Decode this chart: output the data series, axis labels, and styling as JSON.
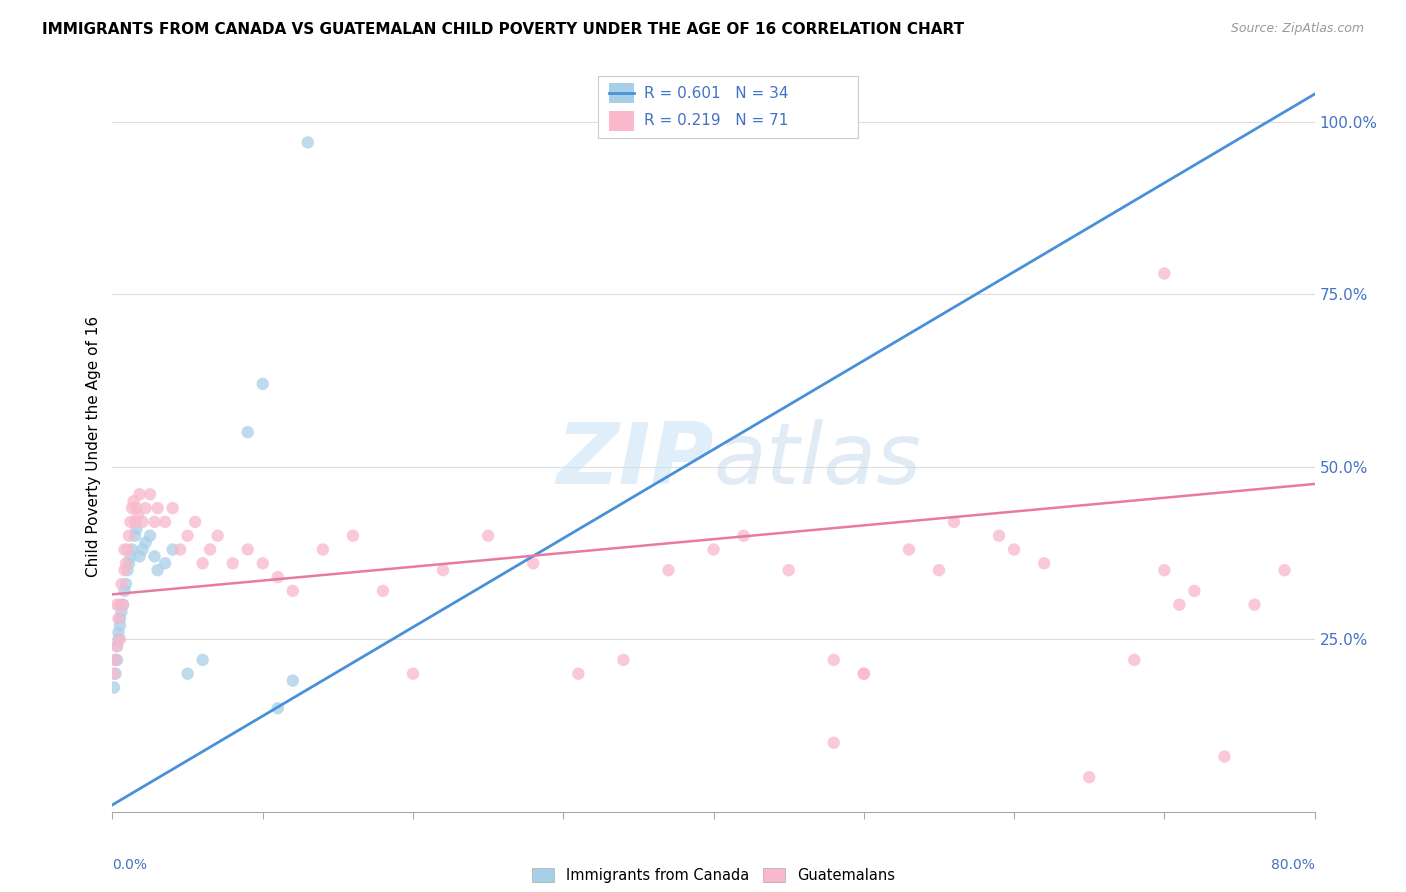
{
  "title": "IMMIGRANTS FROM CANADA VS GUATEMALAN CHILD POVERTY UNDER THE AGE OF 16 CORRELATION CHART",
  "source": "Source: ZipAtlas.com",
  "ylabel": "Child Poverty Under the Age of 16",
  "ytick_labels": [
    "",
    "25.0%",
    "50.0%",
    "75.0%",
    "100.0%"
  ],
  "ytick_vals": [
    0.0,
    0.25,
    0.5,
    0.75,
    1.0
  ],
  "xtick_label_left": "0.0%",
  "xtick_label_right": "80.0%",
  "xmin": 0.0,
  "xmax": 0.8,
  "ymin": 0.0,
  "ymax": 1.06,
  "legend_r1": "0.601",
  "legend_n1": "34",
  "legend_r2": "0.219",
  "legend_n2": "71",
  "blue_scatter_color": "#a8cfe8",
  "pink_scatter_color": "#f9b8cc",
  "blue_line_color": "#4a90d9",
  "pink_line_color": "#e87aa0",
  "blue_line_x0": 0.0,
  "blue_line_y0": 0.01,
  "blue_line_x1": 0.8,
  "blue_line_y1": 1.04,
  "pink_line_x0": 0.0,
  "pink_line_y0": 0.315,
  "pink_line_x1": 0.8,
  "pink_line_y1": 0.475,
  "grid_color": "#dddddd",
  "axis_tick_color": "#aaaaaa",
  "right_label_color": "#4472C4",
  "scatter_size": 80,
  "scatter_alpha": 0.75,
  "title_fontsize": 11,
  "blue_scatter_x": [
    0.001,
    0.002,
    0.002,
    0.003,
    0.003,
    0.004,
    0.004,
    0.005,
    0.005,
    0.006,
    0.007,
    0.008,
    0.009,
    0.01,
    0.011,
    0.012,
    0.013,
    0.015,
    0.016,
    0.018,
    0.02,
    0.022,
    0.025,
    0.028,
    0.03,
    0.035,
    0.04,
    0.05,
    0.06,
    0.09,
    0.1,
    0.11,
    0.12,
    0.13
  ],
  "blue_scatter_y": [
    0.18,
    0.2,
    0.22,
    0.22,
    0.24,
    0.25,
    0.26,
    0.27,
    0.28,
    0.29,
    0.3,
    0.32,
    0.33,
    0.35,
    0.36,
    0.37,
    0.38,
    0.4,
    0.41,
    0.37,
    0.38,
    0.39,
    0.4,
    0.37,
    0.35,
    0.36,
    0.38,
    0.2,
    0.22,
    0.55,
    0.62,
    0.15,
    0.19,
    0.97
  ],
  "pink_scatter_x": [
    0.001,
    0.002,
    0.003,
    0.003,
    0.004,
    0.005,
    0.005,
    0.006,
    0.007,
    0.008,
    0.008,
    0.009,
    0.01,
    0.011,
    0.012,
    0.013,
    0.014,
    0.015,
    0.016,
    0.017,
    0.018,
    0.02,
    0.022,
    0.025,
    0.028,
    0.03,
    0.035,
    0.04,
    0.045,
    0.05,
    0.055,
    0.06,
    0.065,
    0.07,
    0.08,
    0.09,
    0.1,
    0.11,
    0.12,
    0.14,
    0.16,
    0.18,
    0.2,
    0.22,
    0.25,
    0.28,
    0.31,
    0.34,
    0.37,
    0.4,
    0.42,
    0.45,
    0.48,
    0.5,
    0.53,
    0.56,
    0.59,
    0.62,
    0.65,
    0.68,
    0.7,
    0.72,
    0.74,
    0.76,
    0.78,
    0.7,
    0.71,
    0.6,
    0.55,
    0.5,
    0.48
  ],
  "pink_scatter_y": [
    0.2,
    0.22,
    0.24,
    0.3,
    0.28,
    0.25,
    0.3,
    0.33,
    0.3,
    0.35,
    0.38,
    0.36,
    0.38,
    0.4,
    0.42,
    0.44,
    0.45,
    0.42,
    0.44,
    0.43,
    0.46,
    0.42,
    0.44,
    0.46,
    0.42,
    0.44,
    0.42,
    0.44,
    0.38,
    0.4,
    0.42,
    0.36,
    0.38,
    0.4,
    0.36,
    0.38,
    0.36,
    0.34,
    0.32,
    0.38,
    0.4,
    0.32,
    0.2,
    0.35,
    0.4,
    0.36,
    0.2,
    0.22,
    0.35,
    0.38,
    0.4,
    0.35,
    0.22,
    0.2,
    0.38,
    0.42,
    0.4,
    0.36,
    0.05,
    0.22,
    0.35,
    0.32,
    0.08,
    0.3,
    0.35,
    0.78,
    0.3,
    0.38,
    0.35,
    0.2,
    0.1
  ]
}
